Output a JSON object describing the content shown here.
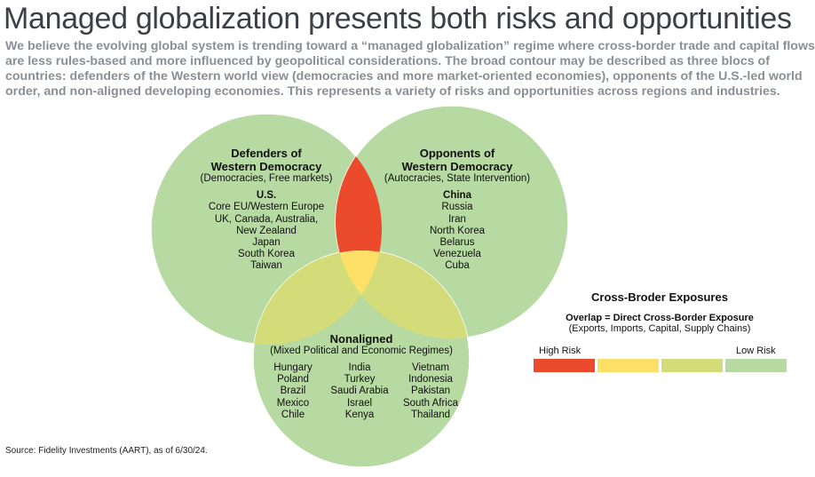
{
  "title": "Managed globalization presents both risks and opportunities",
  "subtitle": "We believe the evolving global system is trending toward a “managed globalization” regime where cross-border trade and capital flows are less rules-based and more influenced by geopolitical considerations. The broad contour may be described as three blocs of countries: defenders of the Western world view (democracies and more market-oriented economies), opponents of the U.S.-led world order, and non-aligned developing economies. This represents a variety of risks and opportunities across regions and industries.",
  "defenders": {
    "title1": "Defenders of",
    "title2": "Western Democracy",
    "desc": "(Democracies, Free markets)",
    "lead": "U.S.",
    "countries": [
      "Core EU/Western Europe",
      "UK, Canada, Australia,",
      "New Zealand",
      "Japan",
      "South Korea",
      "Taiwan"
    ]
  },
  "opponents": {
    "title1": "Opponents of",
    "title2": "Western Democracy",
    "desc": "(Autocracies, State Intervention)",
    "lead": "China",
    "countries": [
      "Russia",
      "Iran",
      "North Korea",
      "Belarus",
      "Venezuela",
      "Cuba"
    ]
  },
  "nonaligned": {
    "title": "Nonaligned",
    "desc": "(Mixed Political and Economic Regimes)",
    "columns": [
      [
        "Hungary",
        "Poland",
        "Brazil",
        "Mexico",
        "Chile"
      ],
      [
        "India",
        "Turkey",
        "Saudi Arabia",
        "Israel",
        "Kenya"
      ],
      [
        "Vietnam",
        "Indonesia",
        "Pakistan",
        "South Africa",
        "Thailand"
      ]
    ]
  },
  "legend": {
    "title": "Cross-Broder Exposures",
    "subtitle": "Overlap = Direct Cross-Border Exposure",
    "detail": "(Exports, Imports, Capital, Supply Chains)",
    "high": "High Risk",
    "low": "Low Risk",
    "colors": [
      "#ec4a2d",
      "#fde068",
      "#d3dc78",
      "#b7d9a2"
    ]
  },
  "source": "Source: Fidelity Investments (AART), as of 6/30/24."
}
